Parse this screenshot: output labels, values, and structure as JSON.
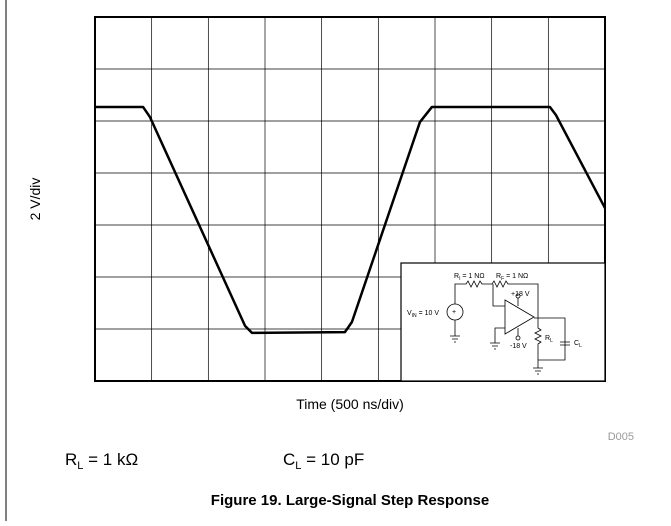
{
  "chart_data": {
    "type": "line",
    "y_label": "2 V/div",
    "x_label": "Time (500 ns/div)",
    "figure_id": "D005",
    "x": [
      0,
      424,
      485,
      1324,
      1385,
      2205,
      2267,
      2867,
      2973,
      4014,
      4067,
      4500
    ],
    "series": [
      {
        "color": "#000000",
        "values": [
          3.54,
          3.54,
          3.15,
          -4.88,
          -5.15,
          -5.12,
          -4.73,
          2.96,
          3.54,
          3.54,
          3.23,
          -0.35
        ]
      }
    ],
    "xlim": [
      0,
      4500
    ],
    "ylim": [
      -7,
      7
    ],
    "xticks": [
      0,
      500,
      1000,
      1500,
      2000,
      2500,
      3000,
      3500,
      4000,
      4500
    ],
    "yticks": [
      -7,
      -5,
      -3,
      -1,
      1,
      3,
      5,
      7
    ],
    "grid": true,
    "conditions": [
      {
        "symbol": "R",
        "subscript": "L",
        "rest": " = 1 kΩ"
      },
      {
        "symbol": "C",
        "subscript": "L",
        "rest": " = 10 pF"
      }
    ],
    "caption": "Figure 19. Large-Signal Step Response",
    "inset": {
      "ri": {
        "symbol": "R",
        "subscript": "I",
        "rest": " = 1 NΩ"
      },
      "rf": {
        "symbol": "R",
        "subscript": "F",
        "rest": " = 1 NΩ"
      },
      "vin": {
        "symbol": "V",
        "subscript": "IN",
        "rest": " = 10 V"
      },
      "vpos": "+18 V",
      "vneg": "-18 V",
      "rl": {
        "symbol": "R",
        "subscript": "L"
      },
      "cl": {
        "symbol": "C",
        "subscript": "L"
      }
    }
  }
}
